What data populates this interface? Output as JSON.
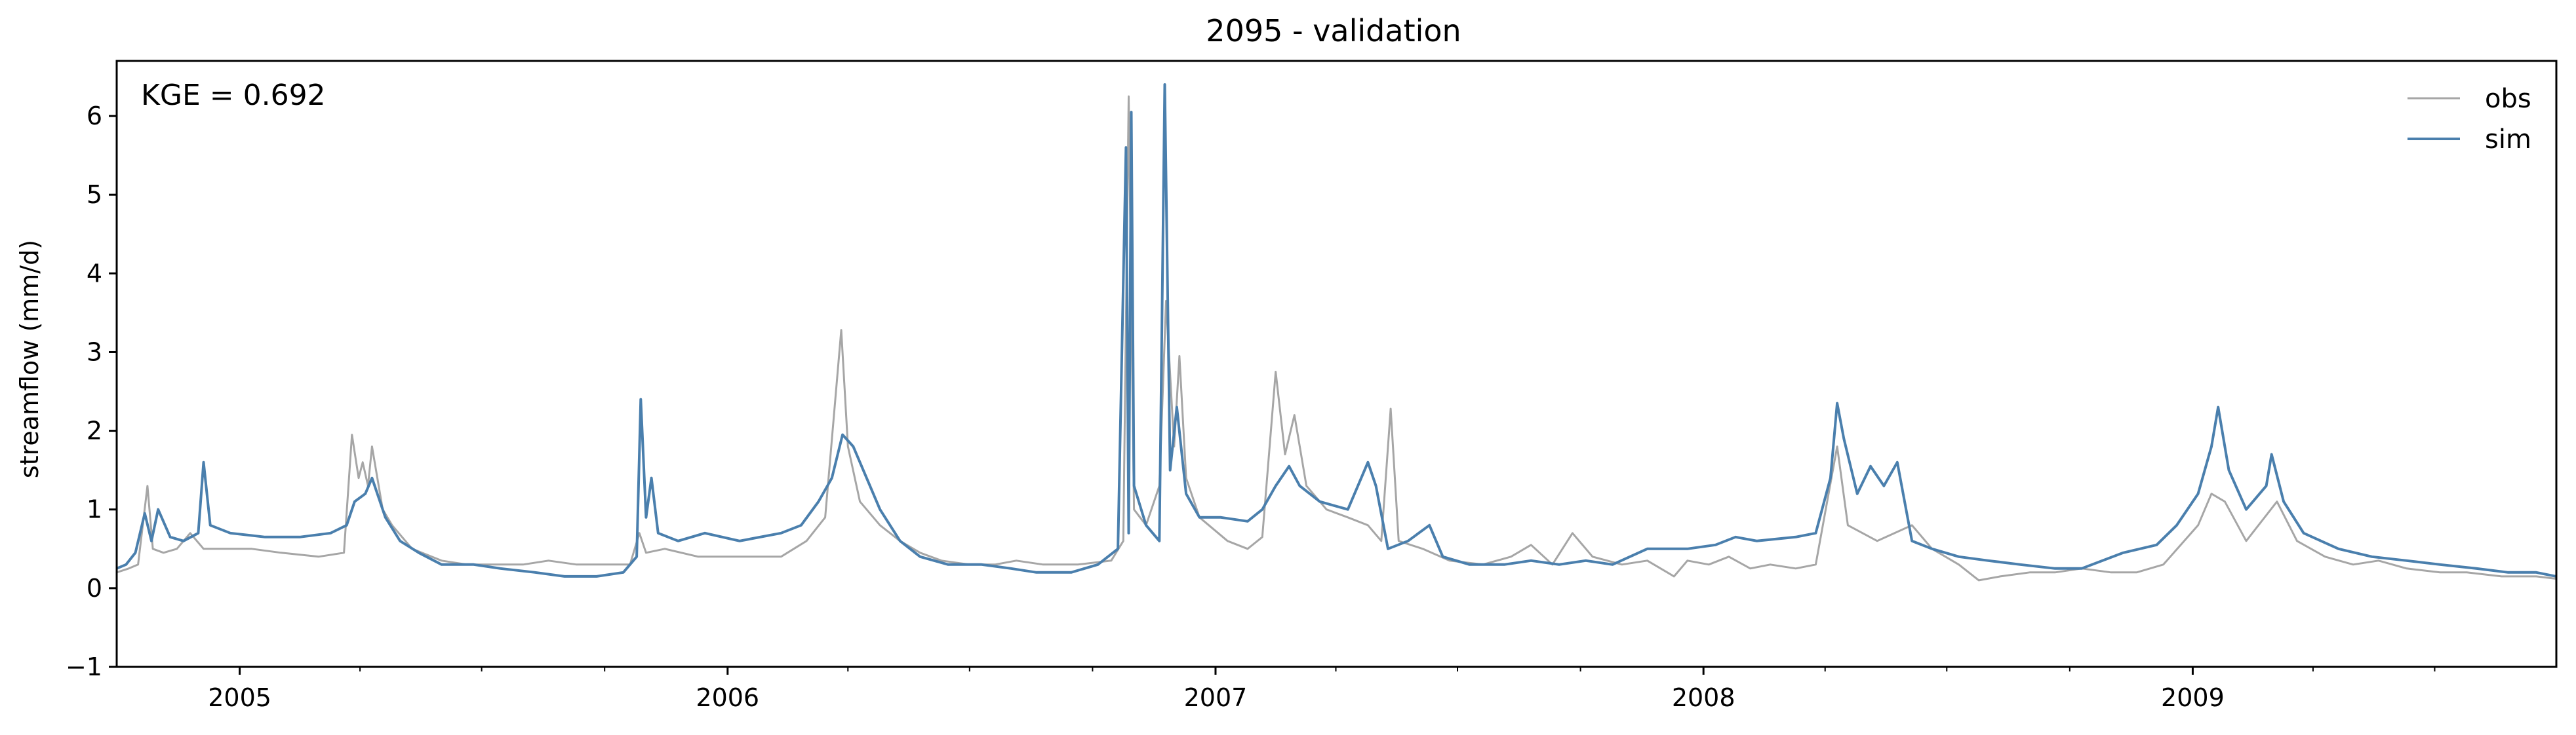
{
  "chart_data": {
    "type": "line",
    "title": "2095 - validation",
    "xlabel": "",
    "ylabel": "streamflow (mm/d)",
    "annotation": "KGE = 0.692",
    "x_range": [
      "2004-10-01",
      "2009-09-30"
    ],
    "ylim": [
      -1,
      6.7
    ],
    "y_ticks": [
      -1,
      0,
      1,
      2,
      3,
      4,
      5,
      6
    ],
    "x_ticks": [
      {
        "date": "2005-01-01",
        "label": "2005"
      },
      {
        "date": "2006-01-01",
        "label": "2006"
      },
      {
        "date": "2007-01-01",
        "label": "2007"
      },
      {
        "date": "2008-01-01",
        "label": "2008"
      },
      {
        "date": "2009-01-01",
        "label": "2009"
      }
    ],
    "grid": false,
    "legend": {
      "position": "top-right",
      "frame": false
    },
    "series": [
      {
        "name": "obs",
        "color": "#a6a6a6",
        "points": [
          [
            "2004-10-01",
            0.2
          ],
          [
            "2004-10-10",
            0.25
          ],
          [
            "2004-10-17",
            0.3
          ],
          [
            "2004-10-24",
            1.3
          ],
          [
            "2004-10-28",
            0.5
          ],
          [
            "2004-11-05",
            0.45
          ],
          [
            "2004-11-15",
            0.5
          ],
          [
            "2004-11-25",
            0.7
          ],
          [
            "2004-12-05",
            0.5
          ],
          [
            "2004-12-20",
            0.5
          ],
          [
            "2005-01-10",
            0.5
          ],
          [
            "2005-02-01",
            0.45
          ],
          [
            "2005-03-01",
            0.4
          ],
          [
            "2005-03-20",
            0.45
          ],
          [
            "2005-03-26",
            1.95
          ],
          [
            "2005-03-31",
            1.4
          ],
          [
            "2005-04-03",
            1.6
          ],
          [
            "2005-04-07",
            1.3
          ],
          [
            "2005-04-10",
            1.8
          ],
          [
            "2005-04-18",
            1.0
          ],
          [
            "2005-04-25",
            0.8
          ],
          [
            "2005-05-10",
            0.5
          ],
          [
            "2005-06-01",
            0.35
          ],
          [
            "2005-06-20",
            0.3
          ],
          [
            "2005-07-10",
            0.3
          ],
          [
            "2005-08-01",
            0.3
          ],
          [
            "2005-08-20",
            0.35
          ],
          [
            "2005-09-10",
            0.3
          ],
          [
            "2005-10-01",
            0.3
          ],
          [
            "2005-10-20",
            0.3
          ],
          [
            "2005-10-27",
            0.7
          ],
          [
            "2005-11-01",
            0.45
          ],
          [
            "2005-11-15",
            0.5
          ],
          [
            "2005-12-10",
            0.4
          ],
          [
            "2006-01-10",
            0.4
          ],
          [
            "2006-02-10",
            0.4
          ],
          [
            "2006-03-01",
            0.6
          ],
          [
            "2006-03-15",
            0.9
          ],
          [
            "2006-03-27",
            3.28
          ],
          [
            "2006-04-01",
            1.8
          ],
          [
            "2006-04-10",
            1.1
          ],
          [
            "2006-04-25",
            0.8
          ],
          [
            "2006-05-10",
            0.6
          ],
          [
            "2006-05-25",
            0.45
          ],
          [
            "2006-06-10",
            0.35
          ],
          [
            "2006-07-01",
            0.3
          ],
          [
            "2006-07-20",
            0.3
          ],
          [
            "2006-08-05",
            0.35
          ],
          [
            "2006-08-25",
            0.3
          ],
          [
            "2006-09-20",
            0.3
          ],
          [
            "2006-10-15",
            0.35
          ],
          [
            "2006-10-24",
            0.6
          ],
          [
            "2006-10-28",
            6.25
          ],
          [
            "2006-11-01",
            1.0
          ],
          [
            "2006-11-10",
            0.8
          ],
          [
            "2006-11-20",
            1.3
          ],
          [
            "2006-11-25",
            3.65
          ],
          [
            "2006-12-01",
            1.8
          ],
          [
            "2006-12-05",
            2.95
          ],
          [
            "2006-12-10",
            1.4
          ],
          [
            "2006-12-20",
            0.9
          ],
          [
            "2007-01-10",
            0.6
          ],
          [
            "2007-01-25",
            0.5
          ],
          [
            "2007-02-05",
            0.65
          ],
          [
            "2007-02-15",
            2.75
          ],
          [
            "2007-02-22",
            1.7
          ],
          [
            "2007-03-01",
            2.2
          ],
          [
            "2007-03-10",
            1.3
          ],
          [
            "2007-03-25",
            1.0
          ],
          [
            "2007-04-10",
            0.9
          ],
          [
            "2007-04-25",
            0.8
          ],
          [
            "2007-05-05",
            0.6
          ],
          [
            "2007-05-12",
            2.28
          ],
          [
            "2007-05-18",
            0.6
          ],
          [
            "2007-06-05",
            0.5
          ],
          [
            "2007-06-25",
            0.35
          ],
          [
            "2007-07-20",
            0.3
          ],
          [
            "2007-08-10",
            0.4
          ],
          [
            "2007-08-25",
            0.55
          ],
          [
            "2007-09-10",
            0.3
          ],
          [
            "2007-09-25",
            0.7
          ],
          [
            "2007-10-10",
            0.4
          ],
          [
            "2007-11-01",
            0.3
          ],
          [
            "2007-11-20",
            0.35
          ],
          [
            "2007-12-10",
            0.15
          ],
          [
            "2007-12-20",
            0.35
          ],
          [
            "2008-01-05",
            0.3
          ],
          [
            "2008-01-20",
            0.4
          ],
          [
            "2008-02-05",
            0.25
          ],
          [
            "2008-02-20",
            0.3
          ],
          [
            "2008-03-10",
            0.25
          ],
          [
            "2008-03-25",
            0.3
          ],
          [
            "2008-04-10",
            1.8
          ],
          [
            "2008-04-18",
            0.8
          ],
          [
            "2008-05-10",
            0.6
          ],
          [
            "2008-06-05",
            0.8
          ],
          [
            "2008-06-20",
            0.5
          ],
          [
            "2008-07-10",
            0.3
          ],
          [
            "2008-07-25",
            0.1
          ],
          [
            "2008-08-10",
            0.15
          ],
          [
            "2008-09-01",
            0.2
          ],
          [
            "2008-09-20",
            0.2
          ],
          [
            "2008-10-10",
            0.25
          ],
          [
            "2008-11-01",
            0.2
          ],
          [
            "2008-11-20",
            0.2
          ],
          [
            "2008-12-10",
            0.3
          ],
          [
            "2009-01-05",
            0.8
          ],
          [
            "2009-01-15",
            1.2
          ],
          [
            "2009-01-25",
            1.1
          ],
          [
            "2009-02-10",
            0.6
          ],
          [
            "2009-03-05",
            1.1
          ],
          [
            "2009-03-20",
            0.6
          ],
          [
            "2009-04-10",
            0.4
          ],
          [
            "2009-05-01",
            0.3
          ],
          [
            "2009-05-20",
            0.35
          ],
          [
            "2009-06-10",
            0.25
          ],
          [
            "2009-07-05",
            0.2
          ],
          [
            "2009-07-25",
            0.2
          ],
          [
            "2009-08-20",
            0.15
          ],
          [
            "2009-09-15",
            0.15
          ],
          [
            "2009-09-30",
            0.12
          ]
        ]
      },
      {
        "name": "sim",
        "color": "#4a7fad",
        "points": [
          [
            "2004-10-01",
            0.25
          ],
          [
            "2004-10-08",
            0.3
          ],
          [
            "2004-10-15",
            0.45
          ],
          [
            "2004-10-22",
            0.95
          ],
          [
            "2004-10-27",
            0.6
          ],
          [
            "2004-11-01",
            1.0
          ],
          [
            "2004-11-10",
            0.65
          ],
          [
            "2004-11-20",
            0.6
          ],
          [
            "2004-12-01",
            0.7
          ],
          [
            "2004-12-05",
            1.6
          ],
          [
            "2004-12-10",
            0.8
          ],
          [
            "2004-12-25",
            0.7
          ],
          [
            "2005-01-20",
            0.65
          ],
          [
            "2005-02-15",
            0.65
          ],
          [
            "2005-03-10",
            0.7
          ],
          [
            "2005-03-22",
            0.8
          ],
          [
            "2005-03-28",
            1.1
          ],
          [
            "2005-04-05",
            1.2
          ],
          [
            "2005-04-10",
            1.4
          ],
          [
            "2005-04-20",
            0.9
          ],
          [
            "2005-05-01",
            0.6
          ],
          [
            "2005-05-15",
            0.45
          ],
          [
            "2005-06-01",
            0.3
          ],
          [
            "2005-06-25",
            0.3
          ],
          [
            "2005-07-15",
            0.25
          ],
          [
            "2005-08-10",
            0.2
          ],
          [
            "2005-09-01",
            0.15
          ],
          [
            "2005-09-25",
            0.15
          ],
          [
            "2005-10-15",
            0.2
          ],
          [
            "2005-10-25",
            0.4
          ],
          [
            "2005-10-28",
            2.4
          ],
          [
            "2005-11-01",
            0.9
          ],
          [
            "2005-11-05",
            1.4
          ],
          [
            "2005-11-10",
            0.7
          ],
          [
            "2005-11-25",
            0.6
          ],
          [
            "2005-12-15",
            0.7
          ],
          [
            "2006-01-10",
            0.6
          ],
          [
            "2006-02-10",
            0.7
          ],
          [
            "2006-02-25",
            0.8
          ],
          [
            "2006-03-10",
            1.1
          ],
          [
            "2006-03-20",
            1.4
          ],
          [
            "2006-03-28",
            1.95
          ],
          [
            "2006-04-05",
            1.8
          ],
          [
            "2006-04-15",
            1.4
          ],
          [
            "2006-04-25",
            1.0
          ],
          [
            "2006-05-10",
            0.6
          ],
          [
            "2006-05-25",
            0.4
          ],
          [
            "2006-06-15",
            0.3
          ],
          [
            "2006-07-10",
            0.3
          ],
          [
            "2006-08-01",
            0.25
          ],
          [
            "2006-08-20",
            0.2
          ],
          [
            "2006-09-15",
            0.2
          ],
          [
            "2006-10-05",
            0.3
          ],
          [
            "2006-10-20",
            0.5
          ],
          [
            "2006-10-26",
            5.6
          ],
          [
            "2006-10-28",
            0.7
          ],
          [
            "2006-10-30",
            6.05
          ],
          [
            "2006-11-01",
            1.3
          ],
          [
            "2006-11-10",
            0.8
          ],
          [
            "2006-11-20",
            0.6
          ],
          [
            "2006-11-24",
            6.4
          ],
          [
            "2006-11-28",
            1.5
          ],
          [
            "2006-12-03",
            2.3
          ],
          [
            "2006-12-10",
            1.2
          ],
          [
            "2006-12-20",
            0.9
          ],
          [
            "2007-01-05",
            0.9
          ],
          [
            "2007-01-25",
            0.85
          ],
          [
            "2007-02-05",
            1.0
          ],
          [
            "2007-02-15",
            1.3
          ],
          [
            "2007-02-25",
            1.55
          ],
          [
            "2007-03-05",
            1.3
          ],
          [
            "2007-03-20",
            1.1
          ],
          [
            "2007-04-10",
            1.0
          ],
          [
            "2007-04-25",
            1.6
          ],
          [
            "2007-05-01",
            1.3
          ],
          [
            "2007-05-10",
            0.5
          ],
          [
            "2007-05-25",
            0.6
          ],
          [
            "2007-06-10",
            0.8
          ],
          [
            "2007-06-20",
            0.4
          ],
          [
            "2007-07-10",
            0.3
          ],
          [
            "2007-08-05",
            0.3
          ],
          [
            "2007-08-25",
            0.35
          ],
          [
            "2007-09-15",
            0.3
          ],
          [
            "2007-10-05",
            0.35
          ],
          [
            "2007-10-25",
            0.3
          ],
          [
            "2007-11-20",
            0.5
          ],
          [
            "2007-12-20",
            0.5
          ],
          [
            "2008-01-10",
            0.55
          ],
          [
            "2008-01-25",
            0.65
          ],
          [
            "2008-02-10",
            0.6
          ],
          [
            "2008-03-10",
            0.65
          ],
          [
            "2008-03-25",
            0.7
          ],
          [
            "2008-04-05",
            1.4
          ],
          [
            "2008-04-10",
            2.35
          ],
          [
            "2008-04-15",
            1.9
          ],
          [
            "2008-04-25",
            1.2
          ],
          [
            "2008-05-05",
            1.55
          ],
          [
            "2008-05-15",
            1.3
          ],
          [
            "2008-05-25",
            1.6
          ],
          [
            "2008-06-05",
            0.6
          ],
          [
            "2008-06-20",
            0.5
          ],
          [
            "2008-07-10",
            0.4
          ],
          [
            "2008-08-01",
            0.35
          ],
          [
            "2008-08-25",
            0.3
          ],
          [
            "2008-09-20",
            0.25
          ],
          [
            "2008-10-10",
            0.25
          ],
          [
            "2008-11-10",
            0.45
          ],
          [
            "2008-12-05",
            0.55
          ],
          [
            "2008-12-20",
            0.8
          ],
          [
            "2009-01-05",
            1.2
          ],
          [
            "2009-01-15",
            1.8
          ],
          [
            "2009-01-20",
            2.3
          ],
          [
            "2009-01-28",
            1.5
          ],
          [
            "2009-02-10",
            1.0
          ],
          [
            "2009-02-25",
            1.3
          ],
          [
            "2009-03-01",
            1.7
          ],
          [
            "2009-03-10",
            1.1
          ],
          [
            "2009-03-25",
            0.7
          ],
          [
            "2009-04-20",
            0.5
          ],
          [
            "2009-05-15",
            0.4
          ],
          [
            "2009-06-10",
            0.35
          ],
          [
            "2009-07-05",
            0.3
          ],
          [
            "2009-08-01",
            0.25
          ],
          [
            "2009-08-25",
            0.2
          ],
          [
            "2009-09-15",
            0.2
          ],
          [
            "2009-09-30",
            0.15
          ]
        ]
      }
    ]
  }
}
